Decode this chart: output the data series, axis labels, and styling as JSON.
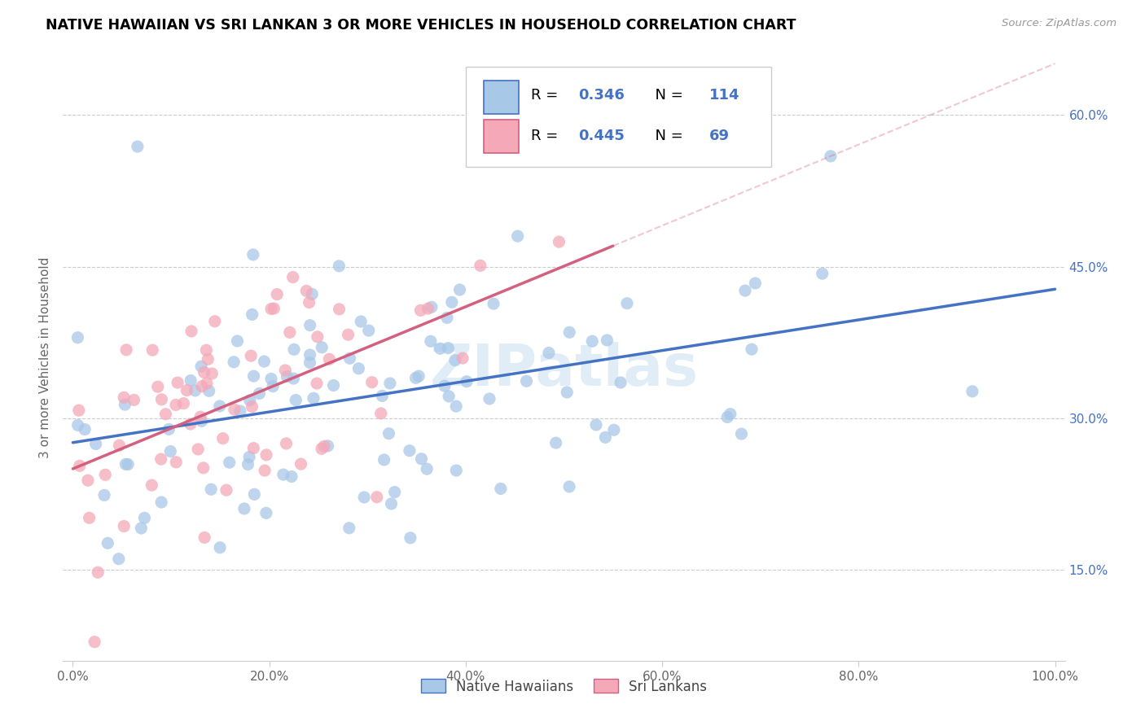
{
  "title": "NATIVE HAWAIIAN VS SRI LANKAN 3 OR MORE VEHICLES IN HOUSEHOLD CORRELATION CHART",
  "source": "Source: ZipAtlas.com",
  "ylabel_label": "3 or more Vehicles in Household",
  "legend_label1": "Native Hawaiians",
  "legend_label2": "Sri Lankans",
  "R1": 0.346,
  "N1": 114,
  "R2": 0.445,
  "N2": 69,
  "color_blue": "#a8c8e8",
  "color_pink": "#f4a8b8",
  "color_blue_dark": "#4472c4",
  "color_pink_dark": "#d46080",
  "watermark": "ZIPatlas",
  "xlim": [
    0.0,
    1.0
  ],
  "ylim": [
    0.06,
    0.66
  ],
  "yticks": [
    0.15,
    0.3,
    0.45,
    0.6
  ],
  "xticks": [
    0.0,
    0.2,
    0.4,
    0.6,
    0.8,
    1.0
  ]
}
